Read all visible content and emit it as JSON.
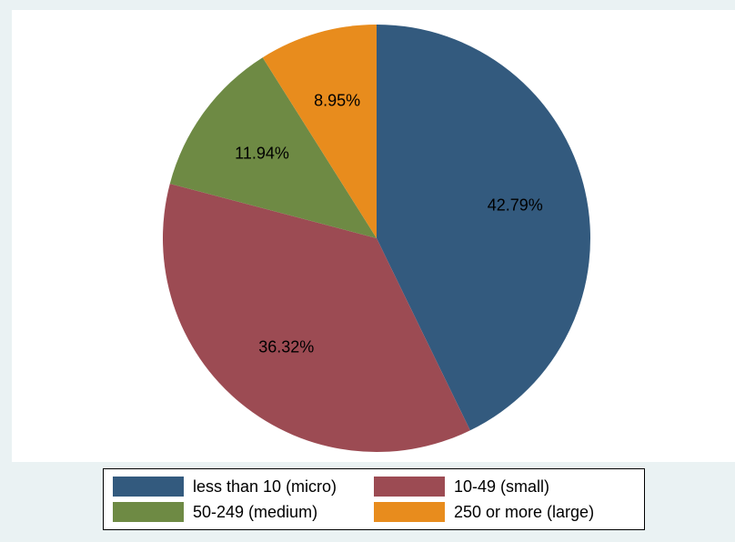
{
  "chart_data": {
    "type": "pie",
    "title": "",
    "legend_placement": "bottom",
    "slices": [
      {
        "name": "less than 10 (micro)",
        "value": 42.79,
        "label": "42.79%",
        "color": "#335a7e"
      },
      {
        "name": "10-49 (small)",
        "value": 36.32,
        "label": "36.32%",
        "color": "#9c4b53"
      },
      {
        "name": "50-249 (medium)",
        "value": 11.94,
        "label": "11.94%",
        "color": "#6e8a44"
      },
      {
        "name": "250 or more (large)",
        "value": 8.95,
        "label": "8.95%",
        "color": "#e88c1d"
      }
    ]
  }
}
